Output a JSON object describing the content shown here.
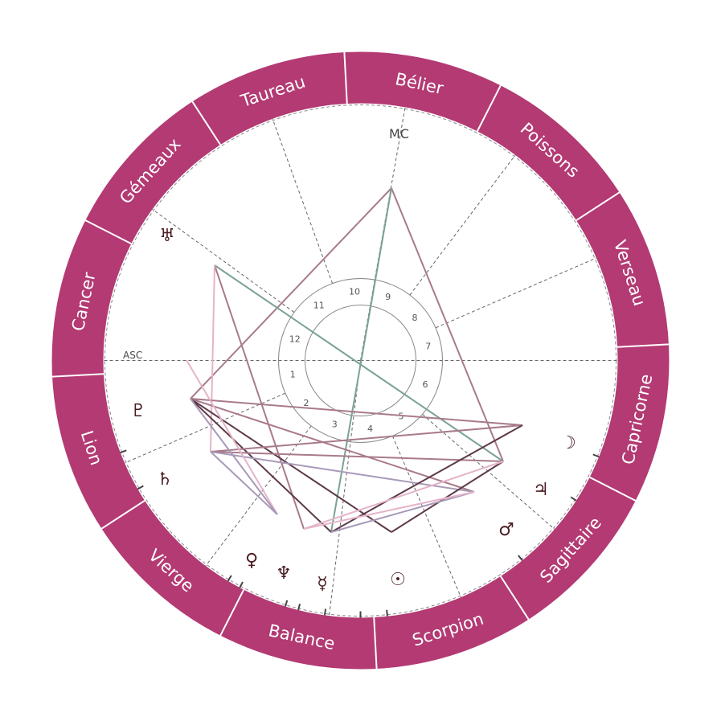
{
  "colors": {
    "ring": "#b33a73",
    "ring_divider": "#ffffff",
    "cusp_line": "#666666",
    "glyph": "#4a1c22",
    "aspect_green": "#7aa297",
    "aspect_mauve": "#a87a8c",
    "aspect_pink": "#e5b4c9",
    "aspect_dark": "#5e3a48",
    "aspect_lavender": "#a89ab8"
  },
  "zodiac": [
    {
      "name": "Bélier",
      "icon": "aries"
    },
    {
      "name": "Taureau",
      "icon": "taurus"
    },
    {
      "name": "Gémeaux",
      "icon": "gemini"
    },
    {
      "name": "Cancer",
      "icon": "cancer"
    },
    {
      "name": "Lion",
      "icon": "leo"
    },
    {
      "name": "Vierge",
      "icon": "virgo"
    },
    {
      "name": "Balance",
      "icon": "libra"
    },
    {
      "name": "Scorpion",
      "icon": "scorpio"
    },
    {
      "name": "Sagittaire",
      "icon": "sagittarius"
    },
    {
      "name": "Capricorne",
      "icon": "capricorn"
    },
    {
      "name": "Verseau",
      "icon": "aquarius"
    },
    {
      "name": "Poissons",
      "icon": "pisces"
    }
  ],
  "axes": {
    "asc": "ASC",
    "mc": "MC"
  },
  "houses": [
    "1",
    "2",
    "3",
    "4",
    "5",
    "6",
    "7",
    "8",
    "9",
    "10",
    "11",
    "12"
  ],
  "planets": [
    {
      "name": "sun",
      "glyph": "☉"
    },
    {
      "name": "moon",
      "glyph": "☽"
    },
    {
      "name": "mercury",
      "glyph": "☿"
    },
    {
      "name": "venus",
      "glyph": "♀"
    },
    {
      "name": "mars",
      "glyph": "♂"
    },
    {
      "name": "jupiter",
      "glyph": "♃"
    },
    {
      "name": "saturn",
      "glyph": "♄"
    },
    {
      "name": "uranus",
      "glyph": "♅"
    },
    {
      "name": "neptune",
      "glyph": "♆"
    },
    {
      "name": "pluto",
      "glyph": "♇"
    }
  ]
}
